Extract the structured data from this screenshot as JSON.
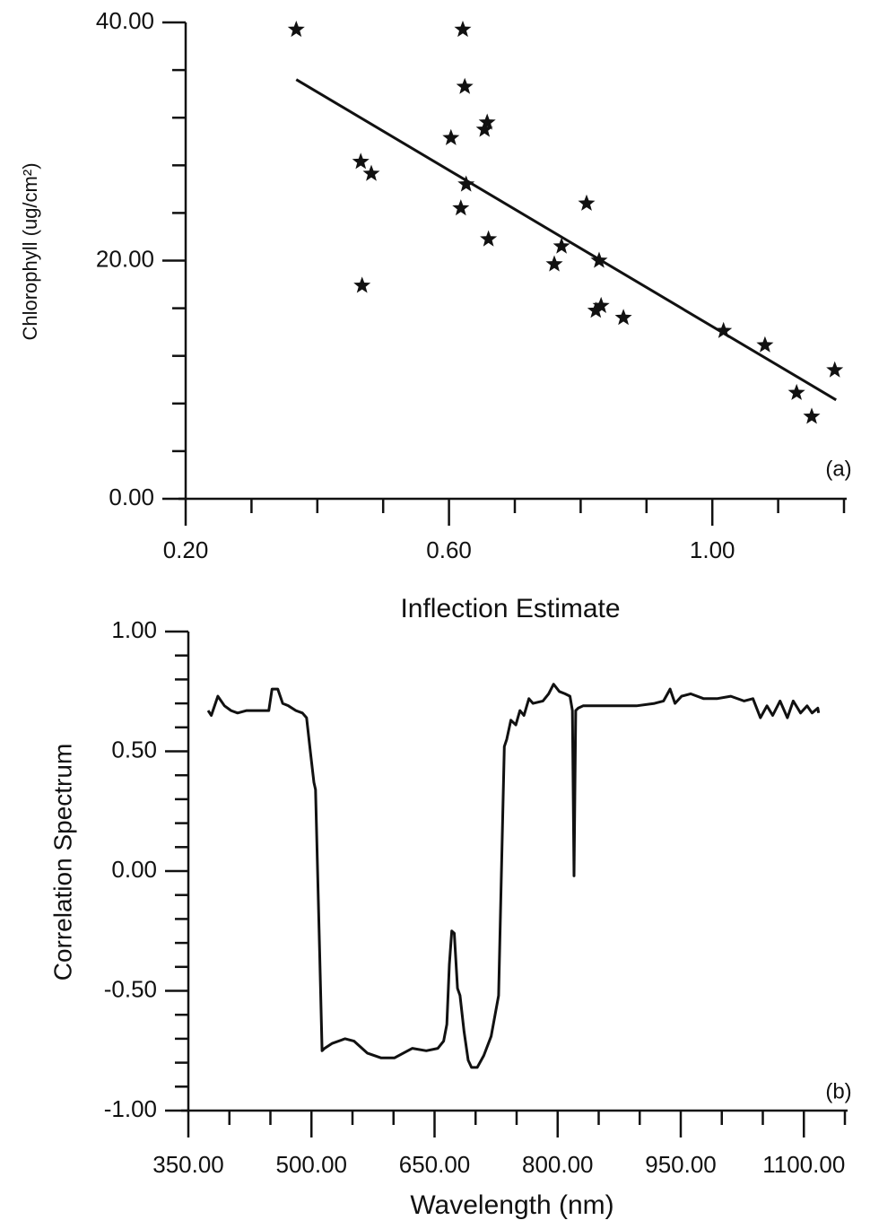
{
  "chart_data": [
    {
      "type": "scatter",
      "x_label": "Inflection Estimate",
      "y_label": "Chlorophyll (ug/cm²)",
      "annotation": "(a)",
      "color": "#111111",
      "x": [
        0.368,
        0.621,
        0.624,
        0.466,
        0.482,
        0.603,
        0.654,
        0.658,
        0.626,
        0.618,
        0.66,
        0.468,
        0.809,
        0.771,
        0.76,
        0.828,
        0.823,
        0.831,
        0.865,
        1.017,
        1.08,
        1.186,
        1.128,
        1.151
      ],
      "values": [
        39.4,
        39.4,
        34.6,
        28.3,
        27.3,
        30.3,
        31.0,
        31.6,
        26.4,
        24.4,
        21.8,
        17.9,
        24.8,
        21.2,
        19.7,
        20.0,
        15.8,
        16.2,
        15.2,
        14.1,
        12.9,
        10.8,
        8.9,
        6.9
      ],
      "fit_line": {
        "x": [
          0.368,
          1.188
        ],
        "values": [
          35.2,
          8.3
        ]
      },
      "xlim": [
        0.2,
        1.2
      ],
      "ylim": [
        0,
        40
      ],
      "xticks": [
        {
          "value": 0.2,
          "label": "0.20"
        },
        {
          "value": 0.6,
          "label": "0.60"
        },
        {
          "value": 1.0,
          "label": "1.00"
        }
      ],
      "xticks_minor": [
        0.3,
        0.4,
        0.5,
        0.7,
        0.8,
        0.9,
        1.1,
        1.2
      ],
      "yticks": [
        {
          "value": 0,
          "label": "0.00"
        },
        {
          "value": 20,
          "label": "20.00"
        },
        {
          "value": 40,
          "label": "40.00"
        }
      ],
      "yticks_minor": [
        4,
        8,
        12,
        16,
        24,
        28,
        32,
        36
      ]
    },
    {
      "type": "line",
      "x_label": "Wavelength (nm)",
      "y_label": "Correlation Spectrum",
      "annotation": "(b)",
      "color": "#111111",
      "x": [
        374,
        378,
        386,
        394,
        402,
        410,
        421,
        437,
        448,
        452,
        459,
        465,
        472,
        481,
        489,
        494,
        499,
        503,
        505,
        510,
        513,
        516,
        525,
        541,
        552,
        568,
        585,
        601,
        612,
        623,
        640,
        654,
        661,
        665,
        668,
        671,
        674,
        678,
        681,
        686,
        691,
        695,
        702,
        710,
        719,
        728,
        735,
        738,
        743,
        749,
        754,
        759,
        765,
        770,
        782,
        789,
        795,
        802,
        809,
        815,
        818,
        820,
        822,
        825,
        831,
        863,
        896,
        918,
        929,
        937,
        943,
        951,
        962,
        978,
        994,
        1011,
        1027,
        1038,
        1047,
        1055,
        1062,
        1071,
        1080,
        1087,
        1096,
        1104,
        1110,
        1117,
        1118
      ],
      "values": [
        0.67,
        0.65,
        0.73,
        0.69,
        0.67,
        0.66,
        0.67,
        0.67,
        0.67,
        0.76,
        0.76,
        0.7,
        0.69,
        0.67,
        0.66,
        0.64,
        0.49,
        0.37,
        0.34,
        -0.34,
        -0.75,
        -0.74,
        -0.72,
        -0.7,
        -0.71,
        -0.76,
        -0.78,
        -0.78,
        -0.76,
        -0.74,
        -0.75,
        -0.74,
        -0.71,
        -0.64,
        -0.39,
        -0.25,
        -0.26,
        -0.49,
        -0.52,
        -0.67,
        -0.79,
        -0.82,
        -0.82,
        -0.77,
        -0.69,
        -0.52,
        0.52,
        0.55,
        0.63,
        0.61,
        0.67,
        0.65,
        0.72,
        0.7,
        0.71,
        0.74,
        0.78,
        0.75,
        0.74,
        0.73,
        0.67,
        -0.02,
        0.67,
        0.68,
        0.69,
        0.69,
        0.69,
        0.7,
        0.71,
        0.76,
        0.7,
        0.73,
        0.74,
        0.72,
        0.72,
        0.73,
        0.71,
        0.72,
        0.64,
        0.69,
        0.65,
        0.71,
        0.64,
        0.71,
        0.66,
        0.69,
        0.66,
        0.68,
        0.66
      ],
      "xlim": [
        350,
        1150
      ],
      "ylim": [
        -1,
        1
      ],
      "xticks": [
        {
          "value": 350,
          "label": "350.00"
        },
        {
          "value": 500,
          "label": "500.00"
        },
        {
          "value": 650,
          "label": "650.00"
        },
        {
          "value": 800,
          "label": "800.00"
        },
        {
          "value": 950,
          "label": "950.00"
        },
        {
          "value": 1100,
          "label": "1100.00"
        }
      ],
      "xticks_minor": [
        400,
        450,
        550,
        600,
        700,
        750,
        850,
        900,
        1000,
        1050,
        1150
      ],
      "yticks": [
        {
          "value": -1,
          "label": "-1.00"
        },
        {
          "value": -0.5,
          "label": "-0.50"
        },
        {
          "value": 0,
          "label": "0.00"
        },
        {
          "value": 0.5,
          "label": "0.50"
        },
        {
          "value": 1,
          "label": "1.00"
        }
      ],
      "yticks_minor": [
        -0.9,
        -0.8,
        -0.7,
        -0.6,
        -0.4,
        -0.3,
        -0.2,
        -0.1,
        0.1,
        0.2,
        0.3,
        0.4,
        0.6,
        0.7,
        0.8,
        0.9
      ]
    }
  ]
}
